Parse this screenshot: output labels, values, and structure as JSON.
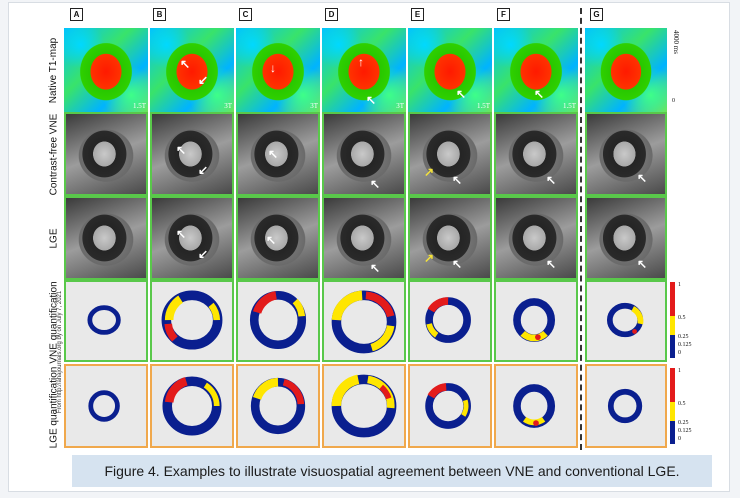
{
  "panels": [
    "A",
    "B",
    "C",
    "D",
    "E",
    "F",
    "G"
  ],
  "rows": [
    "Native T1-map",
    "Contrast-free VNE",
    "LGE",
    "VNE quantification",
    "LGE quantification"
  ],
  "field_labels": [
    "1.5T",
    "3T",
    "3T",
    "3T",
    "1.5T",
    "1.5T"
  ],
  "t1_scale": {
    "max": "4000 ms",
    "min": "0"
  },
  "quant_scale": [
    "1",
    "0.5",
    "0.25",
    "0.125",
    "0"
  ],
  "watermark": "From http://ahajournals.org by on July 7, 2021",
  "caption": "Figure 4.  Examples to illustrate visuospatial agreement between VNE and conventional LGE.",
  "colors": {
    "accent_green": "#59c84a",
    "accent_orange": "#f0a84c",
    "caption_bg": "#d6e3f0"
  }
}
